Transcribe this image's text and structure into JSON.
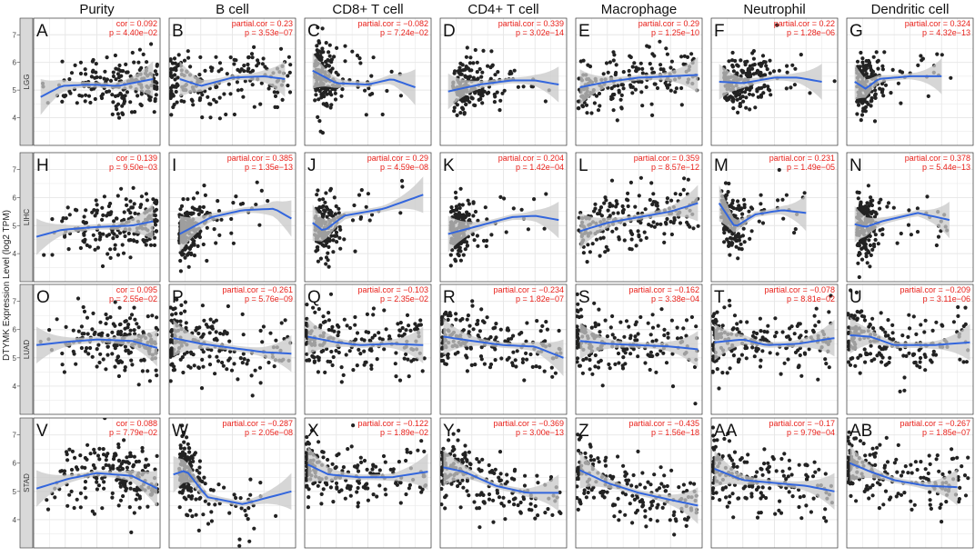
{
  "chart_data": {
    "type": "scatter",
    "title": "",
    "ylabel": "DTYMK Expression Level (log2 TPM)",
    "ylim": [
      3.0,
      7.6
    ],
    "yticks": [
      4,
      5,
      6,
      7
    ],
    "smoother": "loess fit with confidence band",
    "columns": [
      "Purity",
      "B cell",
      "CD8+ T cell",
      "CD4+ T cell",
      "Macrophage",
      "Neutrophil",
      "Dendritic cell"
    ],
    "rows": [
      "LGG",
      "LIHC",
      "LUAD",
      "STAD"
    ],
    "colors": {
      "points": "#222222",
      "fit": "#3366dd",
      "band": "#c8c8c8",
      "stats": "#e8201a",
      "strip": "#d9d9d9",
      "panel_bg": "#ffffff",
      "grid": "#e6e6e6"
    },
    "panels": [
      {
        "letter": "A",
        "cor": "cor = 0.092",
        "p": "p = 4.40e−02",
        "xlim": [
          0.1,
          1.0
        ],
        "curve": [
          [
            0.15,
            4.75
          ],
          [
            0.3,
            5.15
          ],
          [
            0.5,
            5.2
          ],
          [
            0.7,
            5.15
          ],
          [
            0.95,
            5.4
          ]
        ],
        "seed": 11,
        "dist": "purity",
        "trend": 0.4,
        "sd": 0.5
      },
      {
        "letter": "B",
        "cor": "partial.cor = 0.23",
        "p": "p = 3.53e−07",
        "xlim": [
          0,
          0.6
        ],
        "curve": [
          [
            0.05,
            5.4
          ],
          [
            0.15,
            5.15
          ],
          [
            0.3,
            5.45
          ],
          [
            0.45,
            5.5
          ],
          [
            0.55,
            5.4
          ]
        ],
        "seed": 12,
        "dist": "left",
        "trend": 0.4,
        "sd": 0.5
      },
      {
        "letter": "C",
        "cor": "partial.cor = −0.082",
        "p": "p = 7.24e−02",
        "xlim": [
          0,
          0.8
        ],
        "curve": [
          [
            0.05,
            5.7
          ],
          [
            0.2,
            5.25
          ],
          [
            0.4,
            5.2
          ],
          [
            0.55,
            5.4
          ],
          [
            0.7,
            5.1
          ]
        ],
        "seed": 13,
        "dist": "vleft",
        "trend": -0.1,
        "sd": 0.6
      },
      {
        "letter": "D",
        "cor": "partial.cor = 0.339",
        "p": "p = 3.02e−14",
        "xlim": [
          0,
          0.8
        ],
        "curve": [
          [
            0.05,
            4.95
          ],
          [
            0.25,
            5.2
          ],
          [
            0.45,
            5.35
          ],
          [
            0.6,
            5.35
          ],
          [
            0.75,
            5.2
          ]
        ],
        "seed": 14,
        "dist": "mid",
        "trend": 0.6,
        "sd": 0.5
      },
      {
        "letter": "E",
        "cor": "partial.cor = 0.29",
        "p": "p = 1.25e−10",
        "xlim": [
          0,
          0.6
        ],
        "curve": [
          [
            0.02,
            5.1
          ],
          [
            0.15,
            5.3
          ],
          [
            0.3,
            5.45
          ],
          [
            0.45,
            5.5
          ],
          [
            0.58,
            5.55
          ]
        ],
        "seed": 15,
        "dist": "spread",
        "trend": 0.5,
        "sd": 0.5
      },
      {
        "letter": "F",
        "cor": "partial.cor = 0.22",
        "p": "p = 1.28e−06",
        "xlim": [
          0,
          0.8
        ],
        "curve": [
          [
            0.05,
            5.3
          ],
          [
            0.2,
            5.25
          ],
          [
            0.4,
            5.45
          ],
          [
            0.55,
            5.45
          ],
          [
            0.7,
            5.3
          ]
        ],
        "seed": 16,
        "dist": "mid",
        "trend": 0.4,
        "sd": 0.5
      },
      {
        "letter": "G",
        "cor": "partial.cor = 0.324",
        "p": "p = 4.32e−13",
        "xlim": [
          0,
          0.8
        ],
        "curve": [
          [
            0.05,
            5.3
          ],
          [
            0.12,
            5.05
          ],
          [
            0.2,
            5.4
          ],
          [
            0.4,
            5.5
          ],
          [
            0.6,
            5.5
          ]
        ],
        "seed": 17,
        "dist": "vleft",
        "trend": 0.5,
        "sd": 0.5
      },
      {
        "letter": "H",
        "cor": "cor = 0.139",
        "p": "p = 9.50e−03",
        "xlim": [
          0.1,
          1.0
        ],
        "curve": [
          [
            0.12,
            4.6
          ],
          [
            0.3,
            4.85
          ],
          [
            0.55,
            4.95
          ],
          [
            0.8,
            5.0
          ],
          [
            0.95,
            5.15
          ]
        ],
        "seed": 21,
        "dist": "purity",
        "trend": 0.5,
        "sd": 0.55
      },
      {
        "letter": "I",
        "cor": "partial.cor = 0.385",
        "p": "p = 1.35e−13",
        "xlim": [
          0,
          0.6
        ],
        "curve": [
          [
            0.05,
            4.7
          ],
          [
            0.2,
            5.3
          ],
          [
            0.35,
            5.55
          ],
          [
            0.5,
            5.6
          ],
          [
            0.58,
            5.25
          ]
        ],
        "seed": 22,
        "dist": "vleft",
        "trend": 0.9,
        "sd": 0.5
      },
      {
        "letter": "J",
        "cor": "partial.cor = 0.29",
        "p": "p = 4.59e−08",
        "xlim": [
          0,
          0.8
        ],
        "curve": [
          [
            0.05,
            5.1
          ],
          [
            0.12,
            4.8
          ],
          [
            0.25,
            5.35
          ],
          [
            0.5,
            5.6
          ],
          [
            0.75,
            6.1
          ]
        ],
        "seed": 23,
        "dist": "vleft",
        "trend": 0.8,
        "sd": 0.55
      },
      {
        "letter": "K",
        "cor": "partial.cor = 0.204",
        "p": "p = 1.42e−04",
        "xlim": [
          0,
          0.8
        ],
        "curve": [
          [
            0.05,
            4.7
          ],
          [
            0.25,
            5.0
          ],
          [
            0.45,
            5.3
          ],
          [
            0.6,
            5.35
          ],
          [
            0.75,
            5.2
          ]
        ],
        "seed": 24,
        "dist": "vleft",
        "trend": 0.5,
        "sd": 0.5
      },
      {
        "letter": "L",
        "cor": "partial.cor = 0.359",
        "p": "p = 8.57e−12",
        "xlim": [
          0,
          0.6
        ],
        "curve": [
          [
            0.02,
            4.8
          ],
          [
            0.15,
            5.1
          ],
          [
            0.3,
            5.3
          ],
          [
            0.45,
            5.5
          ],
          [
            0.58,
            5.8
          ]
        ],
        "seed": 25,
        "dist": "spread",
        "trend": 0.8,
        "sd": 0.5
      },
      {
        "letter": "M",
        "cor": "partial.cor = 0.231",
        "p": "p = 1.49e−05",
        "xlim": [
          0,
          0.8
        ],
        "curve": [
          [
            0.05,
            5.8
          ],
          [
            0.15,
            4.95
          ],
          [
            0.28,
            5.4
          ],
          [
            0.45,
            5.55
          ],
          [
            0.6,
            5.45
          ]
        ],
        "seed": 26,
        "dist": "vleft",
        "trend": 0.4,
        "sd": 0.55
      },
      {
        "letter": "N",
        "cor": "partial.cor = 0.378",
        "p": "p = 5.44e−13",
        "xlim": [
          0,
          0.8
        ],
        "curve": [
          [
            0.05,
            5.05
          ],
          [
            0.12,
            4.95
          ],
          [
            0.22,
            5.15
          ],
          [
            0.45,
            5.45
          ],
          [
            0.65,
            5.2
          ]
        ],
        "seed": 27,
        "dist": "vleft",
        "trend": 0.6,
        "sd": 0.55
      },
      {
        "letter": "O",
        "cor": "cor = 0.095",
        "p": "p = 2.55e−02",
        "xlim": [
          0.1,
          1.0
        ],
        "curve": [
          [
            0.12,
            5.45
          ],
          [
            0.3,
            5.55
          ],
          [
            0.55,
            5.65
          ],
          [
            0.8,
            5.6
          ],
          [
            0.98,
            5.35
          ]
        ],
        "seed": 31,
        "dist": "purity",
        "trend": 0.1,
        "sd": 0.55
      },
      {
        "letter": "P",
        "cor": "partial.cor = −0.261",
        "p": "p = 5.76e−09",
        "xlim": [
          0,
          0.6
        ],
        "curve": [
          [
            0.02,
            5.7
          ],
          [
            0.15,
            5.5
          ],
          [
            0.3,
            5.35
          ],
          [
            0.45,
            5.2
          ],
          [
            0.58,
            5.15
          ]
        ],
        "seed": 32,
        "dist": "left",
        "trend": -0.6,
        "sd": 0.55
      },
      {
        "letter": "Q",
        "cor": "partial.cor = −0.103",
        "p": "p = 2.35e−02",
        "xlim": [
          0,
          0.8
        ],
        "curve": [
          [
            0.02,
            5.75
          ],
          [
            0.2,
            5.55
          ],
          [
            0.35,
            5.45
          ],
          [
            0.55,
            5.5
          ],
          [
            0.75,
            5.45
          ]
        ],
        "seed": 33,
        "dist": "left",
        "trend": -0.2,
        "sd": 0.55
      },
      {
        "letter": "R",
        "cor": "partial.cor = −0.234",
        "p": "p = 1.82e−07",
        "xlim": [
          0,
          0.8
        ],
        "curve": [
          [
            0.02,
            5.75
          ],
          [
            0.2,
            5.6
          ],
          [
            0.4,
            5.45
          ],
          [
            0.6,
            5.4
          ],
          [
            0.78,
            5.0
          ]
        ],
        "seed": 34,
        "dist": "left",
        "trend": -0.5,
        "sd": 0.55
      },
      {
        "letter": "S",
        "cor": "partial.cor = −0.162",
        "p": "p = 3.38e−04",
        "xlim": [
          0,
          0.6
        ],
        "curve": [
          [
            0.02,
            5.6
          ],
          [
            0.15,
            5.5
          ],
          [
            0.3,
            5.45
          ],
          [
            0.45,
            5.4
          ],
          [
            0.58,
            5.3
          ]
        ],
        "seed": 35,
        "dist": "left",
        "trend": -0.3,
        "sd": 0.55
      },
      {
        "letter": "T",
        "cor": "partial.cor = −0.078",
        "p": "p = 8.81e−02",
        "xlim": [
          0,
          0.8
        ],
        "curve": [
          [
            0.02,
            5.55
          ],
          [
            0.2,
            5.65
          ],
          [
            0.35,
            5.45
          ],
          [
            0.55,
            5.5
          ],
          [
            0.78,
            5.7
          ]
        ],
        "seed": 36,
        "dist": "left",
        "trend": -0.1,
        "sd": 0.55
      },
      {
        "letter": "U",
        "cor": "partial.cor = −0.209",
        "p": "p = 3.11e−06",
        "xlim": [
          0,
          0.8
        ],
        "curve": [
          [
            0.02,
            5.8
          ],
          [
            0.15,
            5.75
          ],
          [
            0.3,
            5.45
          ],
          [
            0.55,
            5.45
          ],
          [
            0.78,
            5.55
          ]
        ],
        "seed": 37,
        "dist": "left",
        "trend": -0.4,
        "sd": 0.55
      },
      {
        "letter": "V",
        "cor": "cor = 0.088",
        "p": "p = 7.79e−02",
        "xlim": [
          0.1,
          1.0
        ],
        "curve": [
          [
            0.12,
            5.1
          ],
          [
            0.35,
            5.45
          ],
          [
            0.55,
            5.65
          ],
          [
            0.8,
            5.55
          ],
          [
            0.98,
            5.1
          ]
        ],
        "seed": 41,
        "dist": "purity",
        "trend": 0.1,
        "sd": 0.6
      },
      {
        "letter": "W",
        "cor": "partial.cor = −0.287",
        "p": "p = 2.05e−08",
        "xlim": [
          0,
          0.6
        ],
        "curve": [
          [
            0.02,
            5.6
          ],
          [
            0.08,
            5.75
          ],
          [
            0.18,
            4.8
          ],
          [
            0.35,
            4.55
          ],
          [
            0.58,
            5.0
          ]
        ],
        "seed": 42,
        "dist": "vleft",
        "trend": -0.8,
        "sd": 0.6
      },
      {
        "letter": "X",
        "cor": "partial.cor = −0.122",
        "p": "p = 1.89e−02",
        "xlim": [
          0,
          0.8
        ],
        "curve": [
          [
            0.02,
            5.95
          ],
          [
            0.15,
            5.6
          ],
          [
            0.35,
            5.5
          ],
          [
            0.55,
            5.5
          ],
          [
            0.78,
            5.7
          ]
        ],
        "seed": 43,
        "dist": "left",
        "trend": -0.3,
        "sd": 0.55
      },
      {
        "letter": "Y",
        "cor": "partial.cor = −0.369",
        "p": "p = 3.00e−13",
        "xlim": [
          0,
          0.8
        ],
        "curve": [
          [
            0.02,
            5.85
          ],
          [
            0.15,
            5.7
          ],
          [
            0.35,
            5.2
          ],
          [
            0.55,
            4.95
          ],
          [
            0.75,
            4.95
          ]
        ],
        "seed": 44,
        "dist": "left",
        "trend": -0.9,
        "sd": 0.55
      },
      {
        "letter": "Z",
        "cor": "partial.cor = −0.435",
        "p": "p = 1.56e−18",
        "xlim": [
          0,
          0.6
        ],
        "curve": [
          [
            0.02,
            5.75
          ],
          [
            0.15,
            5.3
          ],
          [
            0.3,
            4.95
          ],
          [
            0.45,
            4.7
          ],
          [
            0.58,
            4.5
          ]
        ],
        "seed": 45,
        "dist": "left",
        "trend": -1.0,
        "sd": 0.55
      },
      {
        "letter": "AA",
        "cor": "partial.cor = −0.17",
        "p": "p = 9.79e−04",
        "xlim": [
          0,
          0.8
        ],
        "curve": [
          [
            0.02,
            5.8
          ],
          [
            0.2,
            5.4
          ],
          [
            0.4,
            5.3
          ],
          [
            0.6,
            5.2
          ],
          [
            0.78,
            5.0
          ]
        ],
        "seed": 46,
        "dist": "left",
        "trend": -0.4,
        "sd": 0.55
      },
      {
        "letter": "AB",
        "cor": "partial.cor = −0.267",
        "p": "p = 1.85e−07",
        "xlim": [
          0,
          0.8
        ],
        "curve": [
          [
            0.02,
            6.0
          ],
          [
            0.15,
            5.7
          ],
          [
            0.3,
            5.4
          ],
          [
            0.5,
            5.2
          ],
          [
            0.7,
            5.15
          ]
        ],
        "seed": 47,
        "dist": "left",
        "trend": -0.6,
        "sd": 0.55
      }
    ]
  }
}
